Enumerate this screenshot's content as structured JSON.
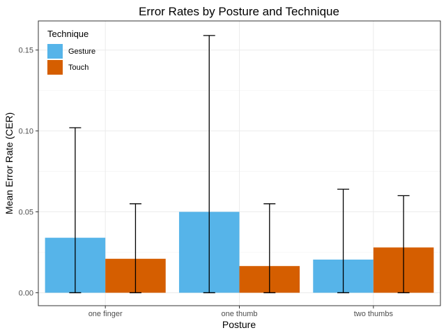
{
  "chart_data": {
    "type": "bar",
    "title": "Error Rates by Posture and Technique",
    "xlabel": "Posture",
    "ylabel": "Mean Error Rate (CER)",
    "categories": [
      "one finger",
      "one thumb",
      "two thumbs"
    ],
    "ylim": [
      -0.008,
      0.168
    ],
    "yticks": [
      0.0,
      0.05,
      0.1,
      0.15
    ],
    "ytick_labels": [
      "0.00",
      "0.05",
      "0.10",
      "0.15"
    ],
    "grid": true,
    "legend": {
      "title": "Technique",
      "position": "top-left"
    },
    "series": [
      {
        "name": "Gesture",
        "color": "#56b4e9",
        "values": [
          0.034,
          0.05,
          0.0205
        ],
        "error_low": [
          0.0,
          0.0,
          0.0
        ],
        "error_high": [
          0.102,
          0.159,
          0.064
        ]
      },
      {
        "name": "Touch",
        "color": "#d55e00",
        "values": [
          0.021,
          0.0165,
          0.028
        ],
        "error_low": [
          0.0,
          0.0,
          0.0
        ],
        "error_high": [
          0.055,
          0.055,
          0.06
        ]
      }
    ]
  }
}
